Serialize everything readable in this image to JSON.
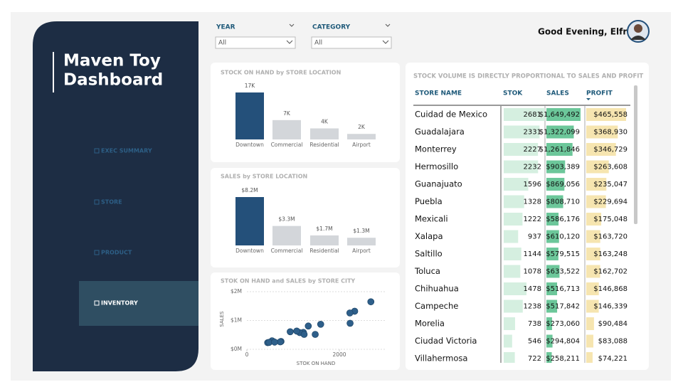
{
  "sidebar": {
    "title_lines": [
      "Maven Toy",
      "Dashboard"
    ],
    "nav": [
      "EXEC SUMMARY",
      "STORE",
      "PRODUCT",
      "INVENTORY"
    ],
    "active": 3
  },
  "filters": [
    {
      "label": "YEAR",
      "value": "All"
    },
    {
      "label": "CATEGORY",
      "value": "All"
    }
  ],
  "greeting": "Good Evening, Elfrid",
  "stock_chart": {
    "type": "bar",
    "title": "STOCK ON HAND by STORE LOCATION",
    "categories": [
      "Downtown",
      "Commercial",
      "Residential",
      "Airport"
    ],
    "values": [
      17000,
      7000,
      4000,
      2000
    ],
    "value_labels": [
      "17K",
      "7K",
      "4K",
      "2K"
    ],
    "colors": [
      "#24507a",
      "#d3d6da",
      "#d3d6da",
      "#d3d6da"
    ]
  },
  "sales_chart": {
    "type": "bar",
    "title": "SALES by STORE LOCATION",
    "categories": [
      "Downtown",
      "Commercial",
      "Residential",
      "Airport"
    ],
    "values": [
      8200000,
      3300000,
      1700000,
      1300000
    ],
    "value_labels": [
      "$8.2M",
      "$3.3M",
      "$1.7M",
      "$1.3M"
    ],
    "colors": [
      "#24507a",
      "#d3d6da",
      "#d3d6da",
      "#d3d6da"
    ]
  },
  "scatter_chart": {
    "type": "scatter",
    "title": "STOK ON HAND and SALES by STORE CITY",
    "x_label": "STOK ON HAND",
    "y_label": "SALES",
    "color": "#2e5f8a",
    "x": [
      2681,
      2331,
      2227,
      2232,
      1596,
      1328,
      1222,
      937,
      1144,
      1078,
      1478,
      1238,
      738,
      546,
      722,
      450,
      480,
      600
    ],
    "values": [
      1649492,
      1322099,
      1261846,
      903389,
      869056,
      808710,
      586176,
      610120,
      579515,
      633522,
      516713,
      517842,
      273060,
      294804,
      258211,
      230000,
      240000,
      250000
    ],
    "xlim": [
      0,
      3000
    ],
    "ylim": [
      0,
      2100000
    ],
    "xticks": [
      0,
      2000
    ],
    "yticks": [
      {
        "value": 0,
        "label": "$0M"
      },
      {
        "value": 1000000,
        "label": "$1M"
      },
      {
        "value": 2000000,
        "label": "$2M"
      }
    ]
  },
  "table": {
    "title": "STOCK VOLUME IS DIRECTLY PROPORTIONAL TO SALES AND PROFIT",
    "columns": [
      {
        "name": "STORE NAME",
        "values": [
          "Cuidad de Mexico",
          "Guadalajara",
          "Monterrey",
          "Hermosillo",
          "Guanajuato",
          "Puebla",
          "Mexicali",
          "Xalapa",
          "Saltillo",
          "Toluca",
          "Chihuahua",
          "Campeche",
          "Morelia",
          "Ciudad Victoria",
          "Villahermosa"
        ]
      },
      {
        "name": "STOK",
        "color": "#d5efe0",
        "values": [
          2681,
          2331,
          2227,
          2232,
          1596,
          1328,
          1222,
          937,
          1144,
          1078,
          1478,
          1238,
          738,
          546,
          722
        ]
      },
      {
        "name": "SALES",
        "color": "#6cc79a",
        "values": [
          1649492,
          1322099,
          1261846,
          903389,
          869056,
          808710,
          586176,
          610120,
          579515,
          633522,
          516713,
          517842,
          273060,
          294804,
          258211
        ],
        "value_labels": [
          "$1,649,492",
          "$1,322,099",
          "$1,261,846",
          "$903,389",
          "$869,056",
          "$808,710",
          "$586,176",
          "$610,120",
          "$579,515",
          "$633,522",
          "$516,713",
          "$517,842",
          "$273,060",
          "$294,804",
          "$258,211"
        ]
      },
      {
        "name": "PROFIT",
        "color": "#f6e5b0",
        "values": [
          465558,
          368930,
          346729,
          263608,
          235047,
          229694,
          175048,
          163720,
          163248,
          162702,
          146868,
          146339,
          90484,
          83088,
          74221
        ],
        "value_labels": [
          "$465,558",
          "$368,930",
          "$346,729",
          "$263,608",
          "$235,047",
          "$229,694",
          "$175,048",
          "$163,720",
          "$163,248",
          "$162,702",
          "$146,868",
          "$146,339",
          "$90,484",
          "$83,088",
          "$74,221"
        ]
      }
    ]
  }
}
